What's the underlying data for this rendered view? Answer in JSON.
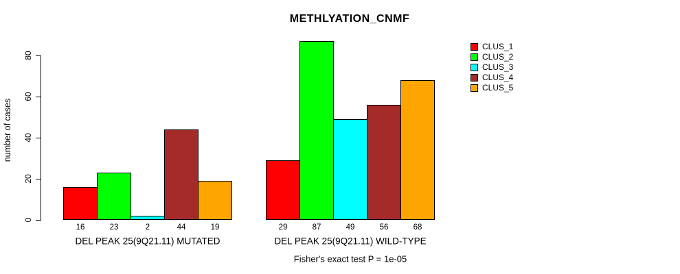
{
  "chart_data": {
    "type": "bar",
    "title": "METHLYATION_CNMF",
    "ylabel": "number of cases",
    "xlabel": "",
    "yticks": [
      0,
      20,
      40,
      60,
      80
    ],
    "ylim": [
      0,
      87
    ],
    "grid": false,
    "legend_position": "right-outside",
    "bar_border_color": "#000000",
    "categories": [
      "DEL PEAK 25(9Q21.11) MUTATED",
      "DEL PEAK 25(9Q21.11) WILD-TYPE"
    ],
    "series": [
      {
        "name": "CLUS_1",
        "color": "#FF0000",
        "values": [
          16,
          29
        ]
      },
      {
        "name": "CLUS_2",
        "color": "#00FF00",
        "values": [
          23,
          87
        ]
      },
      {
        "name": "CLUS_3",
        "color": "#00FFFF",
        "values": [
          2,
          49
        ]
      },
      {
        "name": "CLUS_4",
        "color": "#A52A2A",
        "values": [
          44,
          56
        ]
      },
      {
        "name": "CLUS_5",
        "color": "#FFA500",
        "values": [
          19,
          68
        ]
      }
    ],
    "bar_value_labels_shown": true,
    "annotation": "Fisher's exact test P = 1e-05"
  }
}
